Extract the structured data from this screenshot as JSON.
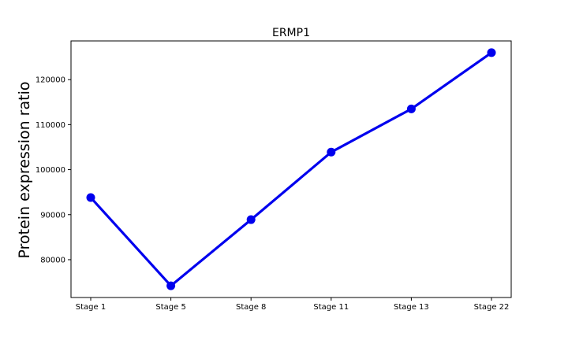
{
  "chart_data": {
    "type": "line",
    "title": "ERMP1",
    "xlabel": "",
    "ylabel": "Protein expression ratio",
    "categories": [
      "Stage 1",
      "Stage 5",
      "Stage 8",
      "Stage 11",
      "Stage 13",
      "Stage 22"
    ],
    "series": [
      {
        "values": [
          93800,
          74200,
          88900,
          103900,
          113500,
          126000
        ],
        "color": "#0000ee"
      }
    ],
    "yticks": [
      80000,
      90000,
      100000,
      110000,
      120000
    ],
    "ylim": [
      71600,
      128600
    ],
    "grid": false
  }
}
